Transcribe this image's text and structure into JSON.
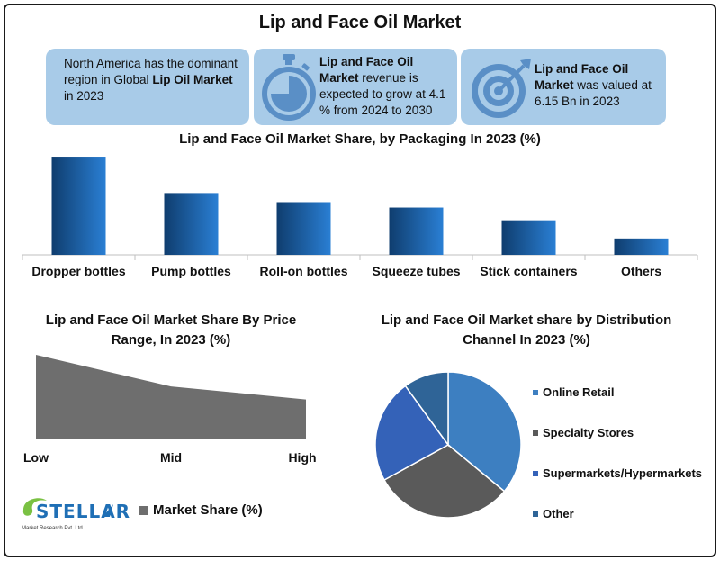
{
  "title": "Lip and Face Oil Market",
  "cards": {
    "region": {
      "pre": "North America has the dominant region in Global ",
      "bold": "Lip Oil Market",
      "post": " in 2023"
    },
    "growth": {
      "bold": "Lip and Face Oil Market",
      "post": " revenue is expected to grow at 4.1 % from 2024 to 2030"
    },
    "value": {
      "bold": "Lip and Face Oil Market",
      "post": " was valued at 6.15 Bn in 2023"
    }
  },
  "icons": {
    "growth": "stopwatch-icon",
    "value": "target-icon"
  },
  "colors": {
    "bar_dark": "#0f3d6e",
    "bar_light": "#2a7fd4",
    "card_bg": "#a8cbe8",
    "area_fill": "#6e6e6e"
  },
  "logo": {
    "word": "STELLAR",
    "sub": "Market Research Pvt. Ltd."
  },
  "chart_data": [
    {
      "type": "bar",
      "title": "Lip and Face Oil Market Share, by Packaging In 2023 (%)",
      "categories": [
        "Dropper bottles",
        "Pump bottles",
        "Roll-on bottles",
        "Squeeze tubes",
        "Stick containers",
        "Others"
      ],
      "values": [
        27,
        17,
        14.5,
        13,
        9.5,
        4.5
      ],
      "ylim": [
        0,
        28
      ],
      "grid": false
    },
    {
      "type": "area",
      "title": "Lip and Face Oil Market Share By Price Range, In 2023 (%)",
      "categories": [
        "Low",
        "Mid",
        "High"
      ],
      "series": [
        {
          "name": "Market Share (%)",
          "values": [
            45,
            28,
            21
          ]
        }
      ],
      "ylim": [
        0,
        45
      ],
      "legend": "bottom"
    },
    {
      "type": "pie",
      "title": "Lip and Face Oil Market share by Distribution Channel In 2023 (%)",
      "labels": [
        "Online Retail",
        "Specialty Stores",
        "Supermarkets/Hypermarkets",
        "Other"
      ],
      "values": [
        36,
        31,
        23,
        10
      ],
      "colors": [
        "#3d7fc1",
        "#5a5a5a",
        "#3462b8",
        "#2f6497"
      ],
      "legend": "right"
    }
  ]
}
